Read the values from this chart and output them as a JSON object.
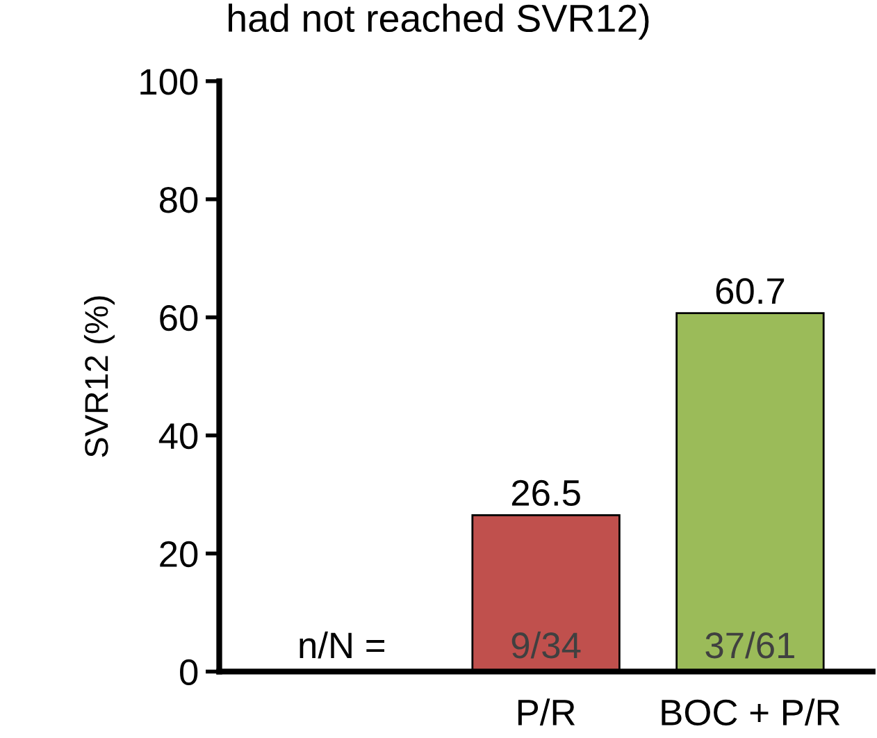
{
  "chart_data": {
    "type": "bar",
    "title": "had not reached SVR12)",
    "ylabel": "SVR12 (%)",
    "categories": [
      null,
      "P/R",
      "BOC + P/R"
    ],
    "values": [
      null,
      26.5,
      60.7
    ],
    "colors": [
      "#c0504d",
      "#c0504d",
      "#9bbb59"
    ],
    "ylim": [
      0,
      100
    ],
    "yticks": [
      0,
      20,
      40,
      60,
      80,
      100
    ],
    "grid": false,
    "data_labels": true,
    "annotations": [
      "n/N =",
      "9/34",
      "37/61"
    ]
  }
}
